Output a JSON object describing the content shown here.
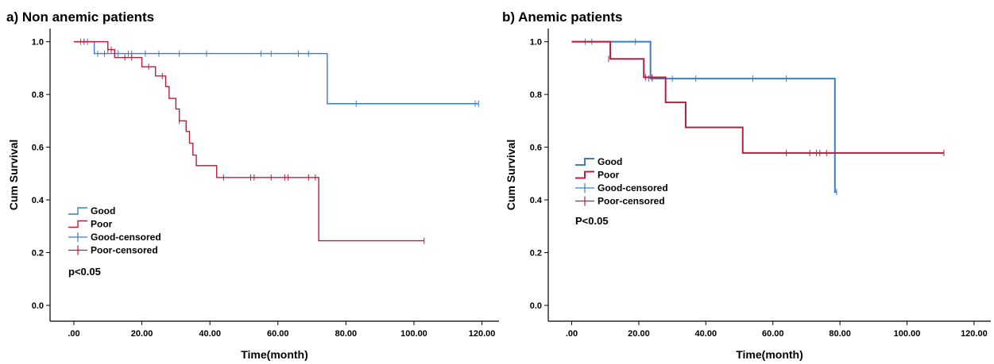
{
  "colors": {
    "good": "#3a7fc1",
    "poor": "#b5203f",
    "axis": "#000000"
  },
  "chart_data": [
    {
      "type": "line",
      "title": "a) Non anemic patients",
      "xlabel": "Time(month)",
      "ylabel": "Cum Survival",
      "xlim": [
        -7,
        125
      ],
      "ylim": [
        -0.06,
        1.05
      ],
      "xticks": [
        0,
        20,
        40,
        60,
        80,
        100,
        120
      ],
      "xtick_labels": [
        ".00",
        "20.00",
        "40.00",
        "60.00",
        "80.00",
        "100.00",
        "120.00"
      ],
      "yticks": [
        0,
        0.2,
        0.4,
        0.6,
        0.8,
        1.0
      ],
      "ytick_labels": [
        "0.0",
        "0.2",
        "0.4",
        "0.6",
        "0.8",
        "1.0"
      ],
      "legend": [
        "Good",
        "Poor",
        "Good-censored",
        "Poor-censored"
      ],
      "annotation": "p<0.05",
      "series": [
        {
          "name": "Good",
          "steps": [
            [
              0,
              1.0
            ],
            [
              6,
              0.955
            ],
            [
              74.5,
              0.765
            ],
            [
              119,
              0.765
            ]
          ],
          "censored": [
            [
              2,
              1.0
            ],
            [
              4,
              1.0
            ],
            [
              7,
              0.955
            ],
            [
              9,
              0.955
            ],
            [
              13,
              0.955
            ],
            [
              16,
              0.955
            ],
            [
              17,
              0.955
            ],
            [
              21,
              0.955
            ],
            [
              25,
              0.955
            ],
            [
              31,
              0.955
            ],
            [
              39,
              0.955
            ],
            [
              55,
              0.955
            ],
            [
              58,
              0.955
            ],
            [
              66,
              0.955
            ],
            [
              69,
              0.955
            ],
            [
              83,
              0.765
            ],
            [
              118,
              0.765
            ],
            [
              119,
              0.765
            ]
          ]
        },
        {
          "name": "Poor",
          "steps": [
            [
              0,
              1.0
            ],
            [
              10,
              0.97
            ],
            [
              12,
              0.94
            ],
            [
              20,
              0.905
            ],
            [
              24,
              0.87
            ],
            [
              27,
              0.83
            ],
            [
              28,
              0.785
            ],
            [
              30,
              0.745
            ],
            [
              31,
              0.7
            ],
            [
              33,
              0.66
            ],
            [
              34,
              0.615
            ],
            [
              35,
              0.57
            ],
            [
              36,
              0.53
            ],
            [
              42,
              0.485
            ],
            [
              72,
              0.245
            ],
            [
              103,
              0.245
            ]
          ],
          "censored": [
            [
              3,
              1.0
            ],
            [
              10,
              0.97
            ],
            [
              11,
              0.97
            ],
            [
              15,
              0.94
            ],
            [
              17,
              0.94
            ],
            [
              22,
              0.905
            ],
            [
              26,
              0.87
            ],
            [
              31,
              0.7
            ],
            [
              44,
              0.485
            ],
            [
              52,
              0.485
            ],
            [
              53,
              0.485
            ],
            [
              58,
              0.485
            ],
            [
              62,
              0.485
            ],
            [
              63,
              0.485
            ],
            [
              69,
              0.485
            ],
            [
              71,
              0.485
            ],
            [
              103,
              0.245
            ]
          ]
        }
      ]
    },
    {
      "type": "line",
      "title": "b) Anemic patients",
      "xlabel": "Time(month)",
      "ylabel": "Cum Survival",
      "xlim": [
        -7,
        125
      ],
      "ylim": [
        -0.06,
        1.05
      ],
      "xticks": [
        0,
        20,
        40,
        60,
        80,
        100,
        120
      ],
      "xtick_labels": [
        ".00",
        "20.00",
        "40.00",
        "60.00",
        "80.00",
        "100.00",
        "120.00"
      ],
      "yticks": [
        0,
        0.2,
        0.4,
        0.6,
        0.8,
        1.0
      ],
      "ytick_labels": [
        "0.0",
        "0.2",
        "0.4",
        "0.6",
        "0.8",
        "1.0"
      ],
      "legend": [
        "Good",
        "Poor",
        "Good-censored",
        "Poor-censored"
      ],
      "annotation": "P<0.05",
      "series": [
        {
          "name": "Good",
          "steps": [
            [
              0,
              1.0
            ],
            [
              23.5,
              0.86
            ],
            [
              78.5,
              0.43
            ],
            [
              79,
              0.43
            ]
          ],
          "censored": [
            [
              4,
              1.0
            ],
            [
              6,
              1.0
            ],
            [
              19,
              1.0
            ],
            [
              23,
              0.86
            ],
            [
              24,
              0.86
            ],
            [
              30,
              0.86
            ],
            [
              37,
              0.86
            ],
            [
              54,
              0.86
            ],
            [
              64,
              0.86
            ],
            [
              79,
              0.43
            ]
          ]
        },
        {
          "name": "Poor",
          "steps": [
            [
              0,
              1.0
            ],
            [
              11.5,
              0.935
            ],
            [
              21.5,
              0.865
            ],
            [
              28,
              0.77
            ],
            [
              34,
              0.675
            ],
            [
              51,
              0.578
            ],
            [
              111,
              0.578
            ]
          ],
          "censored": [
            [
              11,
              0.935
            ],
            [
              22,
              0.865
            ],
            [
              24,
              0.865
            ],
            [
              64,
              0.578
            ],
            [
              71,
              0.578
            ],
            [
              73,
              0.578
            ],
            [
              74,
              0.578
            ],
            [
              76,
              0.578
            ],
            [
              111,
              0.578
            ]
          ]
        }
      ]
    }
  ]
}
